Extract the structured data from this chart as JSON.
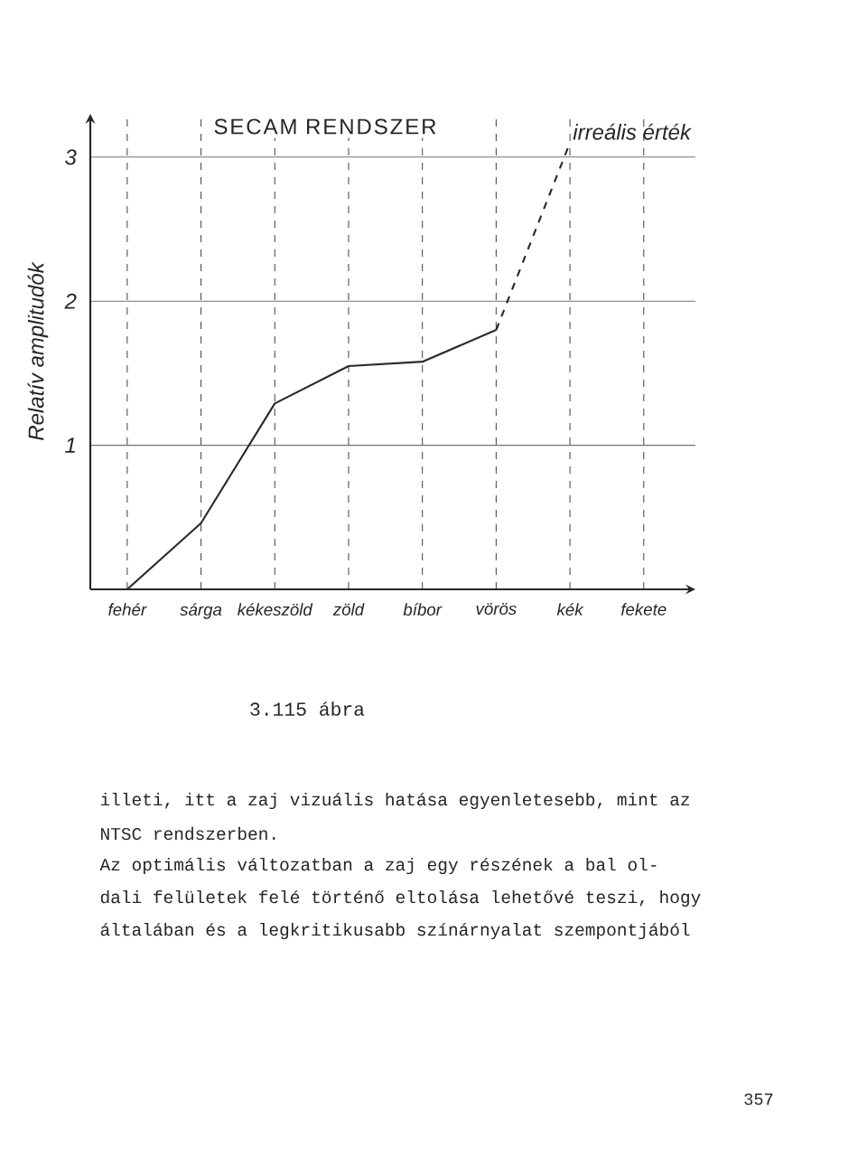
{
  "chart_data": {
    "type": "line",
    "title": "SECAM RENDSZER",
    "ylabel": "Relatív amplitudók",
    "categories": [
      "fehér",
      "sárga",
      "kékeszöld",
      "zöld",
      "bíbor",
      "vörös",
      "kék",
      "fekete"
    ],
    "series": [
      {
        "color": "#2a2a2a",
        "line_style": "solid",
        "values": [
          0,
          0.46,
          1.29,
          1.55,
          1.58,
          1.8,
          null,
          null
        ]
      },
      {
        "color": "#2a2a2a",
        "line_style": "dashed",
        "values": [
          null,
          null,
          null,
          null,
          null,
          1.8,
          3.1,
          null
        ]
      }
    ],
    "ylim": [
      0,
      3.3
    ],
    "yticks": [
      1,
      2,
      3
    ],
    "grid": true,
    "annotations": [
      {
        "text": "irreális érték",
        "x": "kék",
        "y": 3.1
      },
      "3.115 ábra",
      "illeti, itt a zaj vizuális hatása egyenletesebb, mint az",
      "NTSC rendszerben.",
      "Az optimális változatban a zaj egy részének a bal ol-",
      "dali felületek felé történő eltolása lehetővé teszi, hogy",
      "általában és a legkritikusabb színárnyalat szempontjából",
      "357"
    ]
  }
}
